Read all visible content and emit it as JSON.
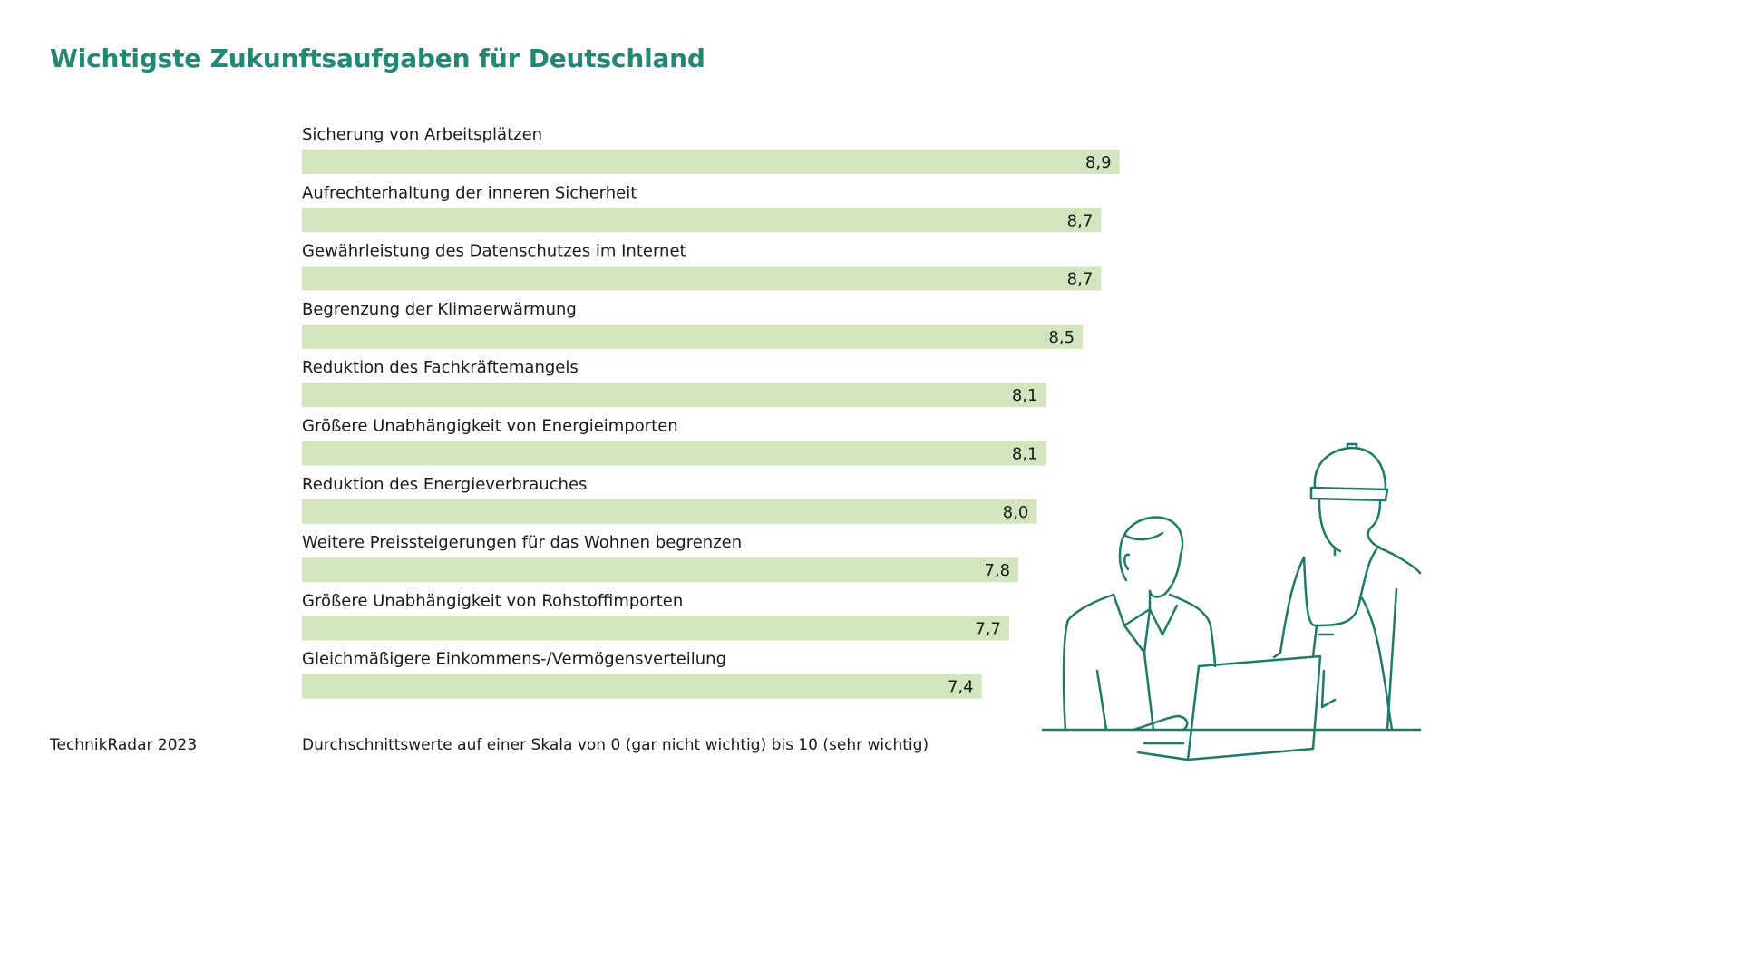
{
  "title": "Wichtigste Zukunftsaufgaben für Deutschland",
  "source": "TechnikRadar 2023",
  "note": "Durchschnittswerte auf einer Skala von 0 (gar nicht wichtig) bis 10 (sehr wichtig)",
  "colors": {
    "title": "#218873",
    "bar": "#d3e5bf",
    "text": "#1a1a1a",
    "illustration_stroke": "#1f7a68"
  },
  "chart_data": {
    "type": "bar",
    "orientation": "horizontal",
    "categories": [
      "Sicherung von Arbeitsplätzen",
      "Aufrechterhaltung der inneren Sicherheit",
      "Gewährleistung des Datenschutzes im Internet",
      "Begrenzung der Klimaerwärmung",
      "Reduktion des Fachkräftemangels",
      "Größere Unabhängigkeit von Energieimporten",
      "Reduktion des Energieverbrauches",
      "Weitere Preissteigerungen für das Wohnen begrenzen",
      "Größere Unabhängigkeit von Rohstoffimporten",
      "Gleichmäßigere Einkommens-/Vermögensverteilung"
    ],
    "values": [
      8.9,
      8.7,
      8.7,
      8.5,
      8.1,
      8.1,
      8.0,
      7.8,
      7.7,
      7.4
    ],
    "value_labels": [
      "8,9",
      "8,7",
      "8,7",
      "8,5",
      "8,1",
      "8,1",
      "8,0",
      "7,8",
      "7,7",
      "7,4"
    ],
    "xlim": [
      0,
      10
    ],
    "grid": false,
    "legend": "none"
  },
  "illustration": {
    "icon": "two-people-with-laptop-icon"
  }
}
